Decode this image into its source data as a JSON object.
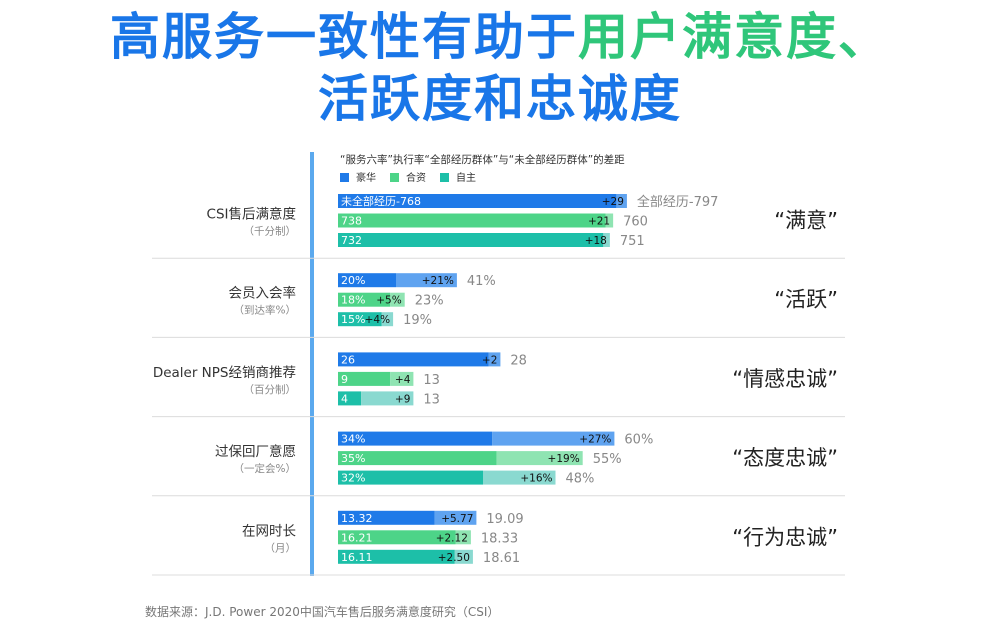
{
  "title": {
    "line1_blue": "高服务一致性有助于",
    "line1_green": "用户满意度、",
    "line2": "活跃度和忠诚度"
  },
  "source": "数据来源：J.D. Power 2020中国汽车售后服务满意度研究（CSI）",
  "colors": {
    "blue": "#1f7ae8",
    "blue_light": "#5fa3f0",
    "green": "#4dd488",
    "green_light": "#8fe4b2",
    "teal": "#1dbfa8",
    "teal_light": "#8ad9d0",
    "title_blue": "#1976e8",
    "title_green": "#2fc67a"
  },
  "chart_data": {
    "type": "bar",
    "orientation": "horizontal",
    "stacked": true,
    "title": "“服务六率”执行率“全部经历群体”与“未全部经历群体”的差距",
    "legend": [
      "豪华",
      "合资",
      "自主"
    ],
    "groups": [
      {
        "label": "CSI售后满意度",
        "sublabel": "（千分制）",
        "tag": "“满意”",
        "scale_max": 800,
        "bars": [
          {
            "series": "豪华",
            "base": 768,
            "base_label": "未全部经历-768",
            "diff": 29,
            "diff_label": "+29",
            "total_label": "全部经历-797"
          },
          {
            "series": "合资",
            "base": 738,
            "base_label": "738",
            "diff": 21,
            "diff_label": "+21",
            "total_label": "760"
          },
          {
            "series": "自主",
            "base": 732,
            "base_label": "732",
            "diff": 18,
            "diff_label": "+18",
            "total_label": "751"
          }
        ]
      },
      {
        "label": "会员入会率",
        "sublabel": "（到达率%）",
        "tag": "“活跃”",
        "scale_max": 100,
        "bars": [
          {
            "series": "豪华",
            "base": 20,
            "base_label": "20%",
            "diff": 21,
            "diff_label": "+21%",
            "total_label": "41%"
          },
          {
            "series": "合资",
            "base": 18,
            "base_label": "18%",
            "diff": 5,
            "diff_label": "+5%",
            "total_label": "23%"
          },
          {
            "series": "自主",
            "base": 15,
            "base_label": "15%",
            "diff": 4,
            "diff_label": "+4%",
            "total_label": "19%"
          }
        ]
      },
      {
        "label": "Dealer NPS经销商推荐",
        "sublabel": "（百分制）",
        "tag": "“情感忠诚”",
        "scale_max": 50,
        "bars": [
          {
            "series": "豪华",
            "base": 26,
            "base_label": "26",
            "diff": 2,
            "diff_label": "+2",
            "total_label": "28"
          },
          {
            "series": "合资",
            "base": 9,
            "base_label": "9",
            "diff": 4,
            "diff_label": "+4",
            "total_label": "13"
          },
          {
            "series": "自主",
            "base": 4,
            "base_label": "4",
            "diff": 9,
            "diff_label": "+9",
            "total_label": "13"
          }
        ]
      },
      {
        "label": "过保回厂意愿",
        "sublabel": "（一定会%）",
        "tag": "“态度忠诚”",
        "scale_max": 64,
        "bars": [
          {
            "series": "豪华",
            "base": 34,
            "base_label": "34%",
            "diff": 27,
            "diff_label": "+27%",
            "total_label": "60%"
          },
          {
            "series": "合资",
            "base": 35,
            "base_label": "35%",
            "diff": 19,
            "diff_label": "+19%",
            "total_label": "55%"
          },
          {
            "series": "自主",
            "base": 32,
            "base_label": "32%",
            "diff": 16,
            "diff_label": "+16%",
            "total_label": "48%"
          }
        ]
      },
      {
        "label": "在网时长",
        "sublabel": "（月）",
        "tag": "“行为忠诚”",
        "scale_max": 40,
        "bars": [
          {
            "series": "豪华",
            "base": 13.32,
            "base_label": "13.32",
            "diff": 5.77,
            "diff_label": "+5.77",
            "total_label": "19.09"
          },
          {
            "series": "合资",
            "base": 16.21,
            "base_label": "16.21",
            "diff": 2.12,
            "diff_label": "+2.12",
            "total_label": "18.33"
          },
          {
            "series": "自主",
            "base": 16.11,
            "base_label": "16.11",
            "diff": 2.5,
            "diff_label": "+2.50",
            "total_label": "18.61"
          }
        ]
      }
    ]
  }
}
